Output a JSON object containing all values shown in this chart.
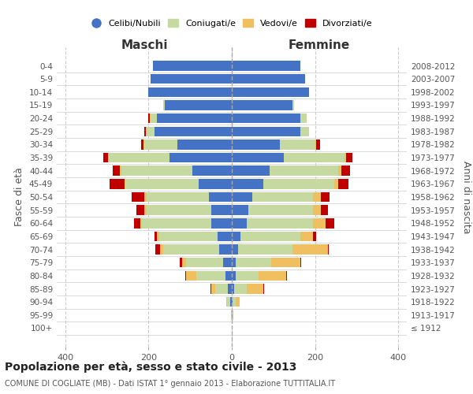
{
  "age_groups": [
    "100+",
    "95-99",
    "90-94",
    "85-89",
    "80-84",
    "75-79",
    "70-74",
    "65-69",
    "60-64",
    "55-59",
    "50-54",
    "45-49",
    "40-44",
    "35-39",
    "30-34",
    "25-29",
    "20-24",
    "15-19",
    "10-14",
    "5-9",
    "0-4"
  ],
  "birth_years": [
    "≤ 1912",
    "1913-1917",
    "1918-1922",
    "1923-1927",
    "1928-1932",
    "1933-1937",
    "1938-1942",
    "1943-1947",
    "1948-1952",
    "1953-1957",
    "1958-1962",
    "1963-1967",
    "1968-1972",
    "1973-1977",
    "1978-1982",
    "1983-1987",
    "1988-1992",
    "1993-1997",
    "1998-2002",
    "2003-2007",
    "2008-2012"
  ],
  "maschi": {
    "celibi": [
      0,
      0,
      3,
      10,
      15,
      20,
      30,
      35,
      50,
      50,
      55,
      80,
      95,
      150,
      130,
      185,
      180,
      160,
      200,
      195,
      190
    ],
    "coniugati": [
      0,
      2,
      8,
      30,
      70,
      90,
      135,
      140,
      165,
      155,
      150,
      175,
      170,
      145,
      80,
      20,
      15,
      5,
      0,
      0,
      0
    ],
    "vedovi": [
      0,
      0,
      3,
      10,
      25,
      10,
      8,
      5,
      5,
      5,
      5,
      3,
      3,
      2,
      2,
      2,
      2,
      0,
      0,
      0,
      0
    ],
    "divorziati": [
      0,
      0,
      0,
      2,
      2,
      5,
      10,
      5,
      15,
      18,
      30,
      35,
      18,
      12,
      5,
      3,
      3,
      0,
      0,
      0,
      0
    ]
  },
  "femmine": {
    "nubili": [
      0,
      0,
      2,
      5,
      10,
      10,
      15,
      20,
      35,
      40,
      50,
      75,
      90,
      125,
      115,
      165,
      165,
      145,
      185,
      175,
      165
    ],
    "coniugate": [
      0,
      2,
      8,
      30,
      55,
      85,
      130,
      145,
      160,
      155,
      145,
      170,
      165,
      145,
      85,
      20,
      15,
      5,
      0,
      0,
      0
    ],
    "vedove": [
      0,
      2,
      8,
      40,
      65,
      70,
      85,
      30,
      30,
      18,
      18,
      10,
      8,
      5,
      3,
      0,
      0,
      0,
      0,
      0,
      0
    ],
    "divorziate": [
      0,
      0,
      0,
      2,
      2,
      2,
      3,
      8,
      20,
      18,
      22,
      25,
      20,
      15,
      8,
      0,
      0,
      0,
      0,
      0,
      0
    ]
  },
  "colors": {
    "celibi_nubili": "#4472C4",
    "coniugati": "#c5d9a0",
    "vedovi": "#f0c060",
    "divorziati": "#c00000"
  },
  "xlim": 420,
  "title": "Popolazione per età, sesso e stato civile - 2013",
  "subtitle": "COMUNE DI COGLIATE (MB) - Dati ISTAT 1° gennaio 2013 - Elaborazione TUTTITALIA.IT",
  "xlabel_left": "Maschi",
  "xlabel_right": "Femmine",
  "ylabel_left": "Fasce di età",
  "ylabel_right": "Anni di nascita"
}
